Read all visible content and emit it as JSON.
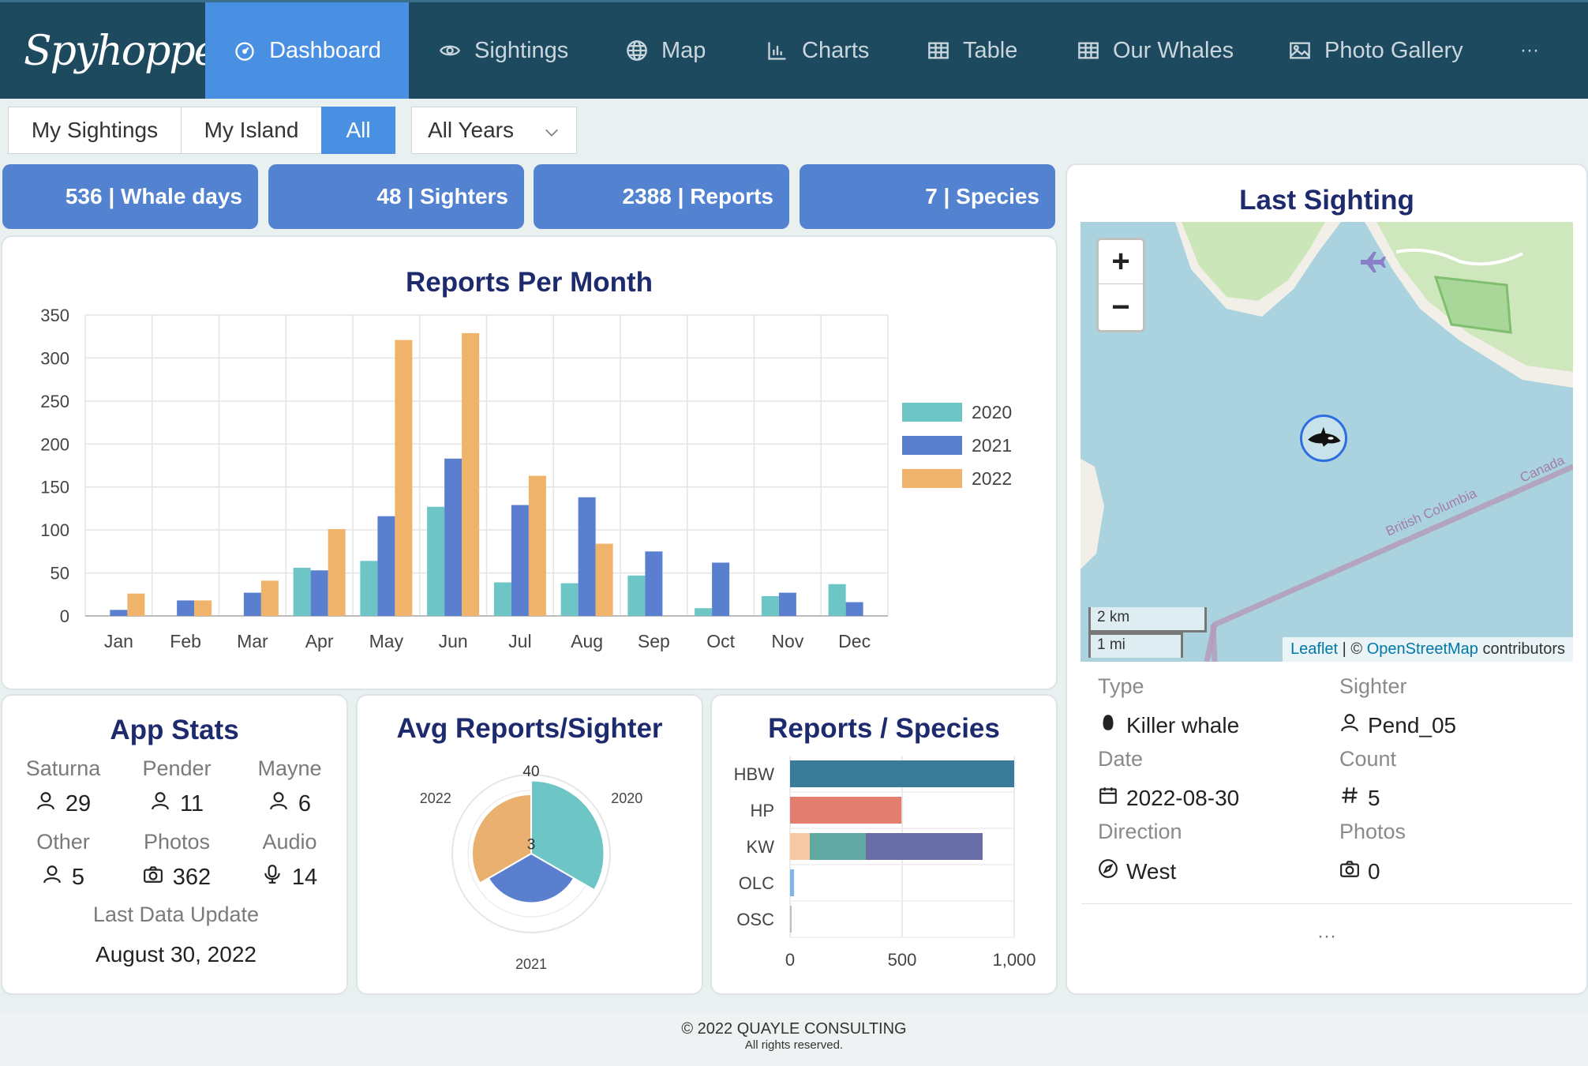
{
  "app": {
    "logo_text": "Spyhopper"
  },
  "nav": {
    "items": [
      {
        "label": "Dashboard",
        "icon": "gauge-icon"
      },
      {
        "label": "Sightings",
        "icon": "eye-icon"
      },
      {
        "label": "Map",
        "icon": "globe-icon"
      },
      {
        "label": "Charts",
        "icon": "bar-chart-icon"
      },
      {
        "label": "Table",
        "icon": "table-icon"
      },
      {
        "label": "Our Whales",
        "icon": "table-icon"
      },
      {
        "label": "Photo Gallery",
        "icon": "image-icon"
      }
    ],
    "more": "···",
    "active": "Dashboard"
  },
  "filters": {
    "segments": [
      "My Sightings",
      "My Island",
      "All"
    ],
    "active_segment": "All",
    "year_select": "All Years"
  },
  "tiles": [
    {
      "label": "536 | Whale days"
    },
    {
      "label": "48 | Sighters"
    },
    {
      "label": "2388 | Reports"
    },
    {
      "label": "7 | Species"
    }
  ],
  "reports_per_month": {
    "title": "Reports Per Month",
    "chart_data": {
      "type": "bar",
      "categories": [
        "Jan",
        "Feb",
        "Mar",
        "Apr",
        "May",
        "Jun",
        "Jul",
        "Aug",
        "Sep",
        "Oct",
        "Nov",
        "Dec"
      ],
      "series": [
        {
          "name": "2020",
          "color": "#6ec5c6",
          "values": [
            0,
            0,
            0,
            56,
            64,
            127,
            39,
            38,
            47,
            9,
            23,
            37
          ]
        },
        {
          "name": "2021",
          "color": "#5a7fce",
          "values": [
            7,
            18,
            27,
            53,
            116,
            183,
            129,
            138,
            75,
            62,
            27,
            16
          ]
        },
        {
          "name": "2022",
          "color": "#f0b36c",
          "values": [
            26,
            18,
            41,
            101,
            321,
            329,
            163,
            84,
            0,
            0,
            0,
            0
          ]
        }
      ],
      "ylim": [
        0,
        350
      ],
      "yticks": [
        0,
        50,
        100,
        150,
        200,
        250,
        300,
        350
      ],
      "legend": "right",
      "grid": true
    }
  },
  "app_stats": {
    "title": "App Stats",
    "items": [
      {
        "label": "Saturna",
        "value": "29",
        "icon": "user-icon"
      },
      {
        "label": "Pender",
        "value": "11",
        "icon": "user-icon"
      },
      {
        "label": "Mayne",
        "value": "6",
        "icon": "user-icon"
      },
      {
        "label": "Other",
        "value": "5",
        "icon": "user-icon"
      },
      {
        "label": "Photos",
        "value": "362",
        "icon": "camera-icon"
      },
      {
        "label": "Audio",
        "value": "14",
        "icon": "microphone-icon"
      }
    ],
    "last_update_label": "Last Data Update",
    "last_update_value": "August 30, 2022"
  },
  "avg_reports": {
    "title": "Avg Reports/Sighter",
    "chart_data": {
      "type": "pie",
      "categories": [
        "2020",
        "2021",
        "2022"
      ],
      "values": [
        37,
        25,
        30
      ],
      "colors": [
        "#6ec5c6",
        "#5a7fce",
        "#eab06f"
      ],
      "rlim": [
        0,
        40
      ],
      "rticks": [
        3,
        40
      ]
    }
  },
  "reports_species": {
    "title": "Reports / Species",
    "chart_data": {
      "type": "bar",
      "orientation": "horizontal",
      "stacked": true,
      "categories": [
        "HBW",
        "HP",
        "KW",
        "OLC",
        "OSC"
      ],
      "series": [
        {
          "color": "#3a7b99",
          "values": [
            1000,
            0,
            0,
            0,
            0
          ]
        },
        {
          "color": "#e37d70",
          "values": [
            0,
            497,
            0,
            0,
            0
          ]
        },
        {
          "color": "#f6c8a6",
          "values": [
            0,
            0,
            88,
            0,
            0
          ]
        },
        {
          "color": "#62a9a4",
          "values": [
            0,
            0,
            250,
            0,
            0
          ]
        },
        {
          "color": "#6a6ea8",
          "values": [
            0,
            0,
            521,
            0,
            0
          ]
        },
        {
          "color": "#7eb6e6",
          "values": [
            0,
            0,
            0,
            18,
            0
          ]
        },
        {
          "color": "#bfbfbf",
          "values": [
            0,
            0,
            0,
            0,
            6
          ]
        }
      ],
      "xlim": [
        0,
        1000
      ],
      "xticks": [
        "0",
        "500",
        "1,000"
      ]
    }
  },
  "last_sighting": {
    "title": "Last Sighting",
    "map": {
      "zoom_in": "+",
      "zoom_out": "−",
      "region_label": "British Columbia",
      "country_label": "Canada",
      "scale_km": "2 km",
      "scale_mi": "1 mi",
      "attribution_leaflet": "Leaflet",
      "attribution_sep": " | © ",
      "attribution_osm": "OpenStreetMap",
      "attribution_tail": " contributors"
    },
    "fields": {
      "type_label": "Type",
      "type_value": "Killer whale",
      "sighter_label": "Sighter",
      "sighter_value": "Pend_05",
      "date_label": "Date",
      "date_value": "2022-08-30",
      "count_label": "Count",
      "count_value": "5",
      "direction_label": "Direction",
      "direction_value": "West",
      "photos_label": "Photos",
      "photos_value": "0"
    },
    "more": "···"
  },
  "footer": {
    "copyright": "© 2022 QUAYLE CONSULTING",
    "rights": "All rights reserved."
  }
}
